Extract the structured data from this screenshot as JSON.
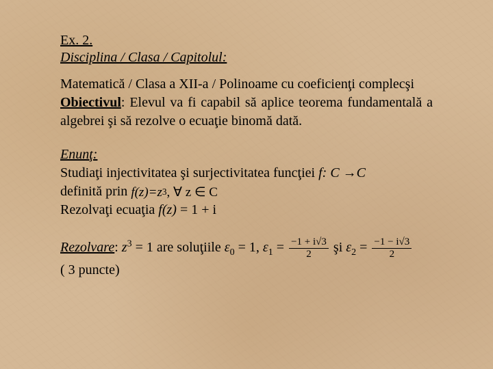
{
  "header": {
    "ex_label": "Ex. 2.",
    "disc_label": "Disciplina / Clasa / Capitolul:"
  },
  "section1": {
    "line1": "Matematică / Clasa a XII-a / Polinoame cu coeficienţi complecşi",
    "objective_label": "Obiectivul",
    "objective_text": ": Elevul va fi capabil să aplice teorema fundamentală a algebrei şi să rezolve o ecuaţie binomă dată."
  },
  "enunt": {
    "label": "Enunţ:",
    "line1a": "Studiaţi injectivitatea şi surjectivitatea funcţiei ",
    "func_decl": "f: C →C",
    "line2a": "definită prin ",
    "formula_fz": "f",
    "formula_z": "z",
    "formula_eq": " = ",
    "formula_pow": "3",
    "forall": ", ∀ z ∈ C",
    "line3a": "Rezolvaţi ecuaţia   ",
    "eq_lhs": "f(z)",
    "eq_rhs": " = 1 + i"
  },
  "rezolvare": {
    "label": "Rezolvare",
    "colon": ": ",
    "z": "z",
    "pow": "3",
    "eq_text": " = 1 are soluţiile ",
    "eps": "ε",
    "sub0": "0",
    "eq1": " = 1, ",
    "sub1": "1",
    "eqfrac": " = ",
    "num1": "−1 + i√3",
    "den": "2",
    "si": "  şi  ",
    "sub2": "2",
    "num2": "−1 − i√3",
    "points": "( 3 puncte)"
  }
}
